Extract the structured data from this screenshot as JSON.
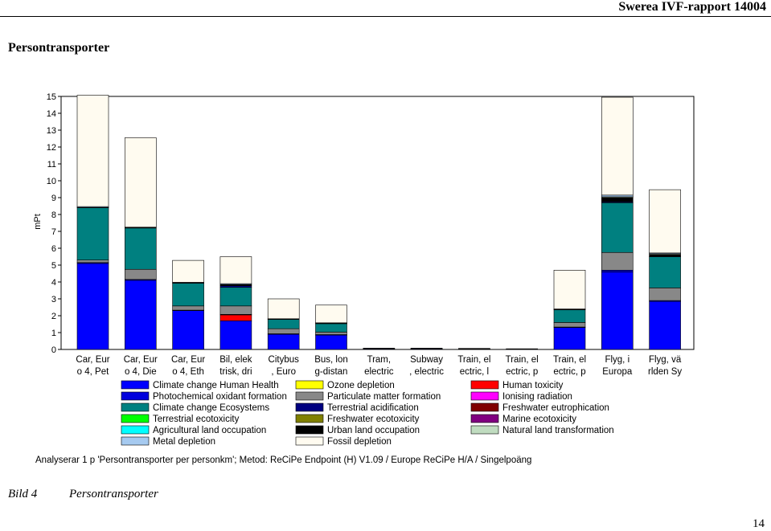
{
  "header": {
    "report_title": "Swerea IVF-rapport 14004"
  },
  "section_title": "Persontransporter",
  "caption": {
    "label": "Bild 4",
    "text": "Persontransporter"
  },
  "page_number": "14",
  "analysis_text": "Analyserar 1 p 'Persontransporter per personkm'; Metod: ReCiPe Endpoint (H) V1.09 / Europe ReCiPe H/A / Singelpoäng",
  "chart_data": {
    "type": "bar",
    "stacked": true,
    "ylabel": "mPt",
    "ylim": [
      0,
      15
    ],
    "yticks": [
      0,
      1,
      2,
      3,
      4,
      5,
      6,
      7,
      8,
      9,
      10,
      11,
      12,
      13,
      14,
      15
    ],
    "grid": false,
    "legend_position": "bottom",
    "categories": [
      [
        "Car, Eur",
        "o 4, Pet"
      ],
      [
        "Car, Eur",
        "o 4, Die"
      ],
      [
        "Car, Eur",
        "o 4, Eth"
      ],
      [
        "Bil, elek",
        "trisk, dri"
      ],
      [
        "Citybus",
        ", Euro"
      ],
      [
        "Bus, lon",
        "g-distan"
      ],
      [
        "Tram,",
        "electric"
      ],
      [
        "Subway",
        ", electric"
      ],
      [
        "Train, el",
        "ectric, l"
      ],
      [
        "Train, el",
        "ectric, p"
      ],
      [
        "Train, el",
        "ectric, p"
      ],
      [
        "Flyg, i",
        "Europa"
      ],
      [
        "Flyg, vä",
        "rlden Sy"
      ]
    ],
    "series": [
      {
        "name": "Climate change Human Health",
        "color": "#0000ff",
        "values": [
          5.1,
          4.1,
          2.3,
          1.7,
          0.9,
          0.85,
          0.04,
          0.04,
          0.03,
          0.02,
          1.3,
          4.6,
          2.85
        ]
      },
      {
        "name": "Ozone depletion",
        "color": "#ffff00",
        "values": [
          0,
          0,
          0,
          0,
          0,
          0,
          0,
          0,
          0,
          0,
          0,
          0,
          0
        ]
      },
      {
        "name": "Human toxicity",
        "color": "#ff0000",
        "values": [
          0,
          0,
          0,
          0.35,
          0,
          0,
          0,
          0,
          0,
          0,
          0,
          0,
          0
        ]
      },
      {
        "name": "Photochemical oxidant formation",
        "color": "#0000dd",
        "values": [
          0.05,
          0.05,
          0.03,
          0.03,
          0.03,
          0.03,
          0,
          0,
          0,
          0,
          0.03,
          0.1,
          0.05
        ]
      },
      {
        "name": "Particulate matter formation",
        "color": "#888888",
        "values": [
          0.15,
          0.6,
          0.25,
          0.5,
          0.3,
          0.15,
          0.005,
          0.005,
          0.003,
          0.002,
          0.27,
          1.05,
          0.75
        ]
      },
      {
        "name": "Ionising radiation",
        "color": "#ff00ff",
        "values": [
          0,
          0,
          0,
          0,
          0,
          0,
          0,
          0,
          0,
          0,
          0,
          0,
          0
        ]
      },
      {
        "name": "Climate change Ecosystems",
        "color": "#008080",
        "values": [
          3.1,
          2.45,
          1.35,
          1.1,
          0.55,
          0.5,
          0.02,
          0.02,
          0.02,
          0.01,
          0.75,
          2.95,
          1.85
        ]
      },
      {
        "name": "Terrestrial acidification",
        "color": "#000080",
        "values": [
          0.02,
          0.02,
          0.02,
          0.1,
          0.02,
          0.02,
          0,
          0,
          0,
          0,
          0.02,
          0.05,
          0.02
        ]
      },
      {
        "name": "Freshwater eutrophication",
        "color": "#800000",
        "values": [
          0,
          0,
          0,
          0,
          0,
          0,
          0,
          0,
          0,
          0,
          0,
          0,
          0
        ]
      },
      {
        "name": "Terrestrial ecotoxicity",
        "color": "#00ff00",
        "values": [
          0,
          0,
          0,
          0,
          0,
          0,
          0,
          0,
          0,
          0,
          0,
          0,
          0
        ]
      },
      {
        "name": "Freshwater ecotoxicity",
        "color": "#808000",
        "values": [
          0,
          0,
          0,
          0,
          0,
          0,
          0,
          0,
          0,
          0,
          0,
          0,
          0
        ]
      },
      {
        "name": "Marine ecotoxicity",
        "color": "#800080",
        "values": [
          0,
          0,
          0,
          0,
          0,
          0,
          0,
          0,
          0,
          0,
          0,
          0,
          0
        ]
      },
      {
        "name": "Agricultural land occupation",
        "color": "#00ffff",
        "values": [
          0,
          0,
          0,
          0,
          0,
          0,
          0,
          0,
          0,
          0,
          0,
          0,
          0
        ]
      },
      {
        "name": "Urban land occupation",
        "color": "#000000",
        "values": [
          0,
          0,
          0,
          0.07,
          0,
          0,
          0,
          0,
          0,
          0,
          0,
          0.25,
          0.1
        ]
      },
      {
        "name": "Natural land transformation",
        "color": "#c0dcc0",
        "values": [
          0,
          0,
          0,
          0,
          0,
          0,
          0,
          0,
          0,
          0,
          0,
          0.05,
          0.05
        ]
      },
      {
        "name": "Metal depletion",
        "color": "#a6caf0",
        "values": [
          0.05,
          0.03,
          0.03,
          0.05,
          0.02,
          0.03,
          0,
          0,
          0,
          0,
          0.03,
          0.1,
          0.05
        ]
      },
      {
        "name": "Fossil depletion",
        "color": "#fffbf0",
        "values": [
          6.6,
          5.3,
          1.3,
          1.6,
          1.18,
          1.05,
          0.01,
          0.01,
          0.01,
          0.01,
          2.3,
          5.8,
          3.75
        ]
      }
    ],
    "legend_order": [
      "Climate change Human Health",
      "Ozone depletion",
      "Human toxicity",
      "Photochemical oxidant formation",
      "Particulate matter formation",
      "Ionising radiation",
      "Climate change Ecosystems",
      "Terrestrial acidification",
      "Freshwater eutrophication",
      "Terrestrial ecotoxicity",
      "Freshwater ecotoxicity",
      "Marine ecotoxicity",
      "Agricultural land occupation",
      "Urban land occupation",
      "Natural land transformation",
      "Metal depletion",
      "Fossil depletion"
    ]
  }
}
